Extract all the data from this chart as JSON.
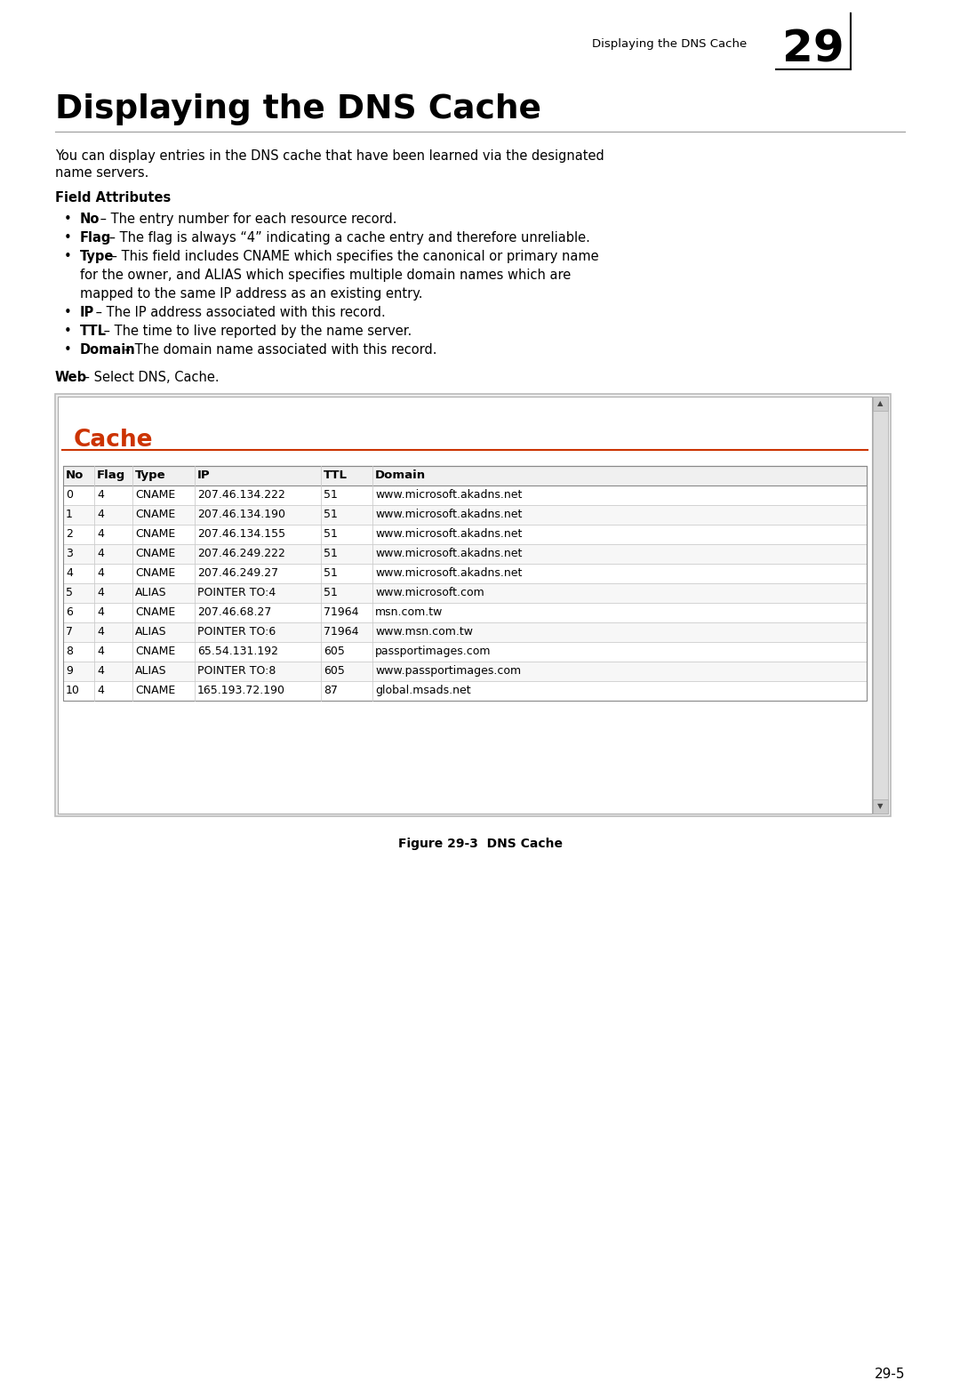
{
  "header_text": "Displaying the DNS Cache",
  "chapter_num": "29",
  "page_num": "29-5",
  "title": "Displaying the DNS Cache",
  "intro_line1": "You can display entries in the DNS cache that have been learned via the designated",
  "intro_line2": "name servers.",
  "field_attributes_title": "Field Attributes",
  "bullets": [
    {
      "bold": "No",
      "dash": " – ",
      "text": "The entry number for each resource record."
    },
    {
      "bold": "Flag",
      "dash": " – ",
      "text": "The flag is always “4” indicating a cache entry and therefore unreliable."
    },
    {
      "bold": "Type",
      "dash": " – ",
      "text": "This field includes CNAME which specifies the canonical or primary name",
      "line2": "for the owner, and ALIAS which specifies multiple domain names which are",
      "line3": "mapped to the same IP address as an existing entry."
    },
    {
      "bold": "IP",
      "dash": " – ",
      "text": "The IP address associated with this record."
    },
    {
      "bold": "TTL",
      "dash": " – ",
      "text": "The time to live reported by the name server."
    },
    {
      "bold": "Domain",
      "dash": " – ",
      "text": "The domain name associated with this record."
    }
  ],
  "web_bold": "Web",
  "web_text": " – Select DNS, Cache.",
  "cache_title": "Cache",
  "table_headers": [
    "No",
    "Flag",
    "Type",
    "IP",
    "TTL",
    "Domain"
  ],
  "table_data": [
    [
      "0",
      "4",
      "CNAME",
      "207.46.134.222",
      "51",
      "www.microsoft.akadns.net"
    ],
    [
      "1",
      "4",
      "CNAME",
      "207.46.134.190",
      "51",
      "www.microsoft.akadns.net"
    ],
    [
      "2",
      "4",
      "CNAME",
      "207.46.134.155",
      "51",
      "www.microsoft.akadns.net"
    ],
    [
      "3",
      "4",
      "CNAME",
      "207.46.249.222",
      "51",
      "www.microsoft.akadns.net"
    ],
    [
      "4",
      "4",
      "CNAME",
      "207.46.249.27",
      "51",
      "www.microsoft.akadns.net"
    ],
    [
      "5",
      "4",
      "ALIAS",
      "POINTER TO:4",
      "51",
      "www.microsoft.com"
    ],
    [
      "6",
      "4",
      "CNAME",
      "207.46.68.27",
      "71964",
      "msn.com.tw"
    ],
    [
      "7",
      "4",
      "ALIAS",
      "POINTER TO:6",
      "71964",
      "www.msn.com.tw"
    ],
    [
      "8",
      "4",
      "CNAME",
      "65.54.131.192",
      "605",
      "passportimages.com"
    ],
    [
      "9",
      "4",
      "ALIAS",
      "POINTER TO:8",
      "605",
      "www.passportimages.com"
    ],
    [
      "10",
      "4",
      "CNAME",
      "165.193.72.190",
      "87",
      "global.msads.net"
    ]
  ],
  "figure_caption": "Figure 29-3  DNS Cache",
  "bg_color": "#ffffff",
  "cache_title_color": "#cc3300",
  "red_line_color": "#cc3300"
}
